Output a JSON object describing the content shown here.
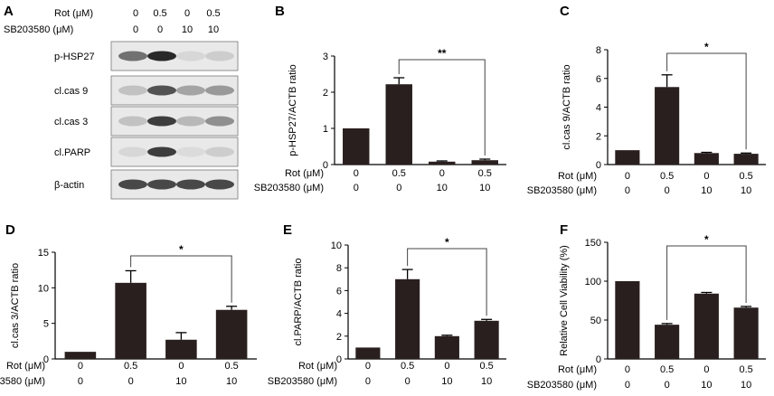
{
  "conditions": {
    "rot_label": "Rot (μM)",
    "sb_label": "SB203580 (μM)",
    "rot_values": [
      "0",
      "0.5",
      "0",
      "0.5"
    ],
    "sb_values": [
      "0",
      "0",
      "10",
      "10"
    ]
  },
  "blot": {
    "panel_label": "A",
    "bands": [
      "p-HSP27",
      "cl.cas 9",
      "cl.cas 3",
      "cl.PARP",
      "β-actin"
    ],
    "intensity": [
      [
        0.6,
        0.95,
        0.1,
        0.15
      ],
      [
        0.2,
        0.75,
        0.35,
        0.4
      ],
      [
        0.2,
        0.85,
        0.25,
        0.45
      ],
      [
        0.1,
        0.85,
        0.08,
        0.15
      ],
      [
        0.8,
        0.8,
        0.8,
        0.8
      ]
    ]
  },
  "chart_data": [
    {
      "panel_label": "B",
      "type": "bar",
      "ylabel": "p-HSP27/ACTB ratio",
      "values": [
        1.0,
        2.22,
        0.08,
        0.12
      ],
      "errors": [
        0,
        0.18,
        0.02,
        0.03
      ],
      "ylim": [
        0,
        3
      ],
      "yticks": [
        "0",
        "1",
        "2",
        "3"
      ],
      "significance": {
        "from": 1,
        "to": 3,
        "label": "**"
      }
    },
    {
      "panel_label": "C",
      "type": "bar",
      "ylabel": "cl.cas 9/ACTB ratio",
      "values": [
        1.0,
        5.4,
        0.8,
        0.75
      ],
      "errors": [
        0,
        0.85,
        0.05,
        0.05
      ],
      "ylim": [
        0,
        8
      ],
      "yticks": [
        "0",
        "2",
        "4",
        "6",
        "8"
      ],
      "significance": {
        "from": 1,
        "to": 3,
        "label": "*"
      }
    },
    {
      "panel_label": "D",
      "type": "bar",
      "ylabel": "cl.cas 3/ACTB ratio",
      "values": [
        1.0,
        10.7,
        2.7,
        6.9
      ],
      "errors": [
        0,
        1.7,
        1.0,
        0.5
      ],
      "ylim": [
        0,
        15
      ],
      "yticks": [
        "0",
        "5",
        "10",
        "15"
      ],
      "significance": {
        "from": 1,
        "to": 3,
        "label": "*"
      }
    },
    {
      "panel_label": "E",
      "type": "bar",
      "ylabel": "cl.PARP/ACTB ratio",
      "values": [
        1.0,
        7.0,
        2.0,
        3.35
      ],
      "errors": [
        0,
        0.85,
        0.08,
        0.12
      ],
      "ylim": [
        0,
        10
      ],
      "yticks": [
        "0",
        "2",
        "4",
        "6",
        "8",
        "10"
      ],
      "significance": {
        "from": 1,
        "to": 3,
        "label": "*"
      }
    },
    {
      "panel_label": "F",
      "type": "bar",
      "ylabel": "Relative Cell Viability (%)",
      "values": [
        100,
        44,
        84,
        66
      ],
      "errors": [
        0,
        1.5,
        1.5,
        1.5
      ],
      "ylim": [
        0,
        150
      ],
      "yticks": [
        "0",
        "50",
        "100",
        "150"
      ],
      "significance": {
        "from": 1,
        "to": 3,
        "label": "*"
      }
    }
  ]
}
